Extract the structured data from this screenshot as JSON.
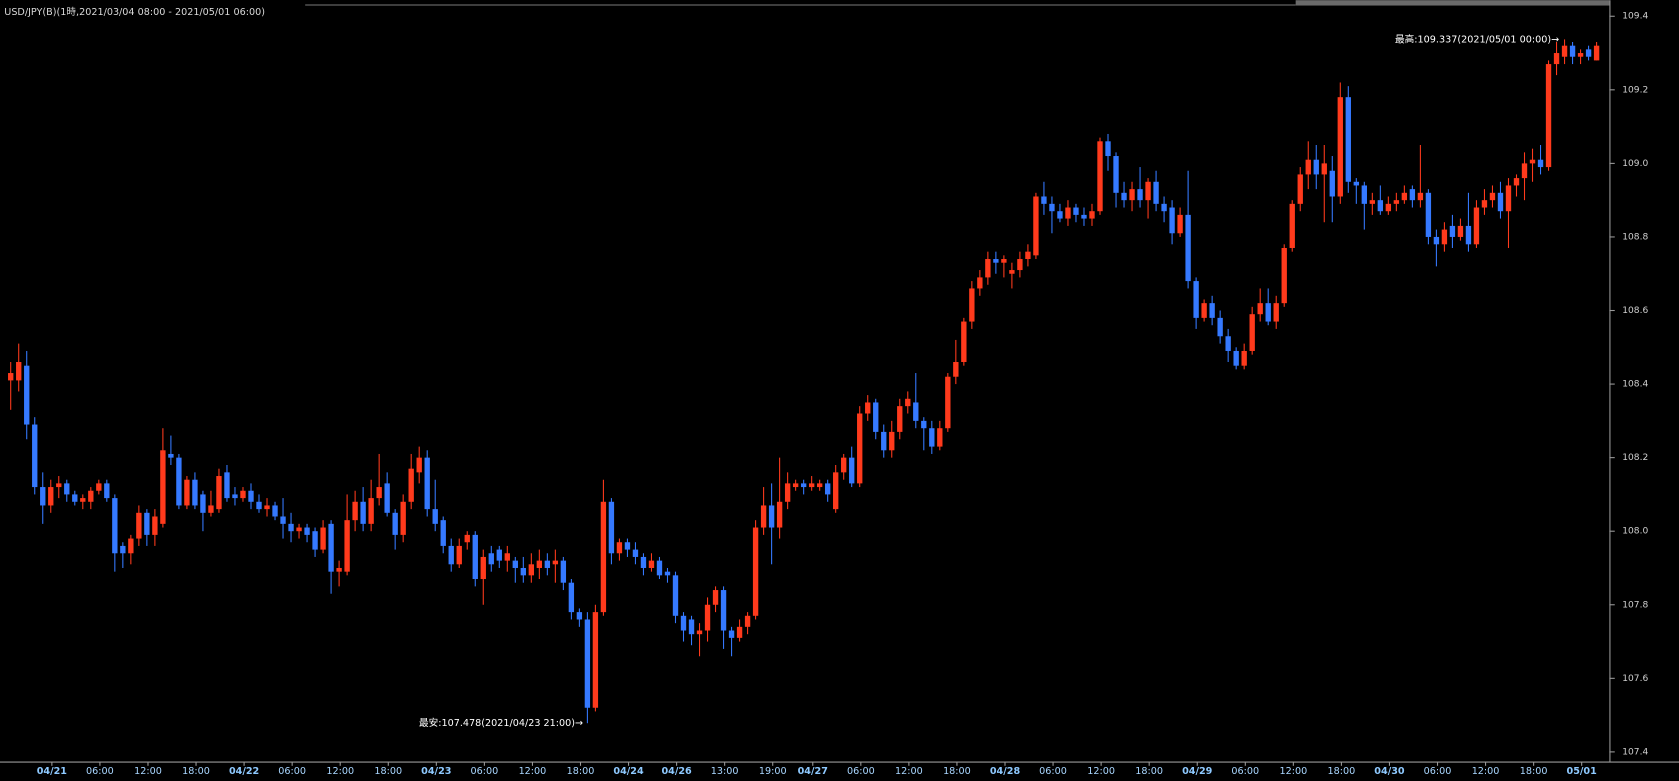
{
  "chart_data": {
    "type": "candlestick",
    "title": "USD/JPY(B)(1時,2021/03/04 08:00 - 2021/05/01 06:00)",
    "annotations": [
      "最高:109.337(2021/05/01 00:00)→",
      "最安:107.478(2021/04/23 21:00)→"
    ],
    "up_color": "#ff3a1c",
    "down_color": "#3579ff",
    "ylim": [
      107.4,
      109.4
    ],
    "yticks": [
      107.4,
      107.6,
      107.8,
      {
        "value": 108,
        "label": "108.0"
      },
      108.2,
      108.4,
      108.6,
      108.8,
      {
        "value": 109,
        "label": "109.0"
      },
      109.2,
      109.4
    ],
    "categories": [
      null,
      null,
      null,
      "04/21",
      null,
      null,
      null,
      null,
      null,
      "06:00",
      null,
      null,
      null,
      null,
      null,
      "12:00",
      null,
      null,
      null,
      null,
      null,
      "18:00",
      null,
      null,
      null,
      null,
      null,
      "04/22",
      null,
      null,
      null,
      null,
      null,
      "06:00",
      null,
      null,
      null,
      null,
      null,
      "12:00",
      null,
      null,
      null,
      null,
      null,
      "18:00",
      null,
      null,
      null,
      null,
      null,
      "04/23",
      null,
      null,
      null,
      null,
      null,
      "06:00",
      null,
      null,
      null,
      null,
      null,
      "12:00",
      null,
      null,
      null,
      null,
      null,
      "18:00",
      null,
      null,
      null,
      null,
      null,
      "04/24",
      null,
      null,
      null,
      null,
      null,
      "04/26",
      null,
      null,
      null,
      null,
      null,
      "13:00",
      null,
      null,
      null,
      null,
      null,
      "19:00",
      null,
      null,
      null,
      null,
      "04/27",
      null,
      null,
      null,
      null,
      null,
      "06:00",
      null,
      null,
      null,
      null,
      null,
      "12:00",
      null,
      null,
      null,
      null,
      null,
      "18:00",
      null,
      null,
      null,
      null,
      null,
      "04/28",
      null,
      null,
      null,
      null,
      null,
      "06:00",
      null,
      null,
      null,
      null,
      null,
      "12:00",
      null,
      null,
      null,
      null,
      null,
      "18:00",
      null,
      null,
      null,
      null,
      null,
      "04/29",
      null,
      null,
      null,
      null,
      null,
      "06:00",
      null,
      null,
      null,
      null,
      null,
      "12:00",
      null,
      null,
      null,
      null,
      null,
      "18:00",
      null,
      null,
      null,
      null,
      null,
      "04/30",
      null,
      null,
      null,
      null,
      null,
      "06:00",
      null,
      null,
      null,
      null,
      null,
      "12:00",
      null,
      null,
      null,
      null,
      null,
      "18:00",
      null,
      null,
      null,
      null,
      null,
      "05/01",
      null,
      null,
      null,
      null
    ],
    "open": [
      108.41,
      108.41,
      108.45,
      108.29,
      108.12,
      108.07,
      108.12,
      108.13,
      108.1,
      108.08,
      108.08,
      108.11,
      108.13,
      108.09,
      107.96,
      107.94,
      107.98,
      108.05,
      107.99,
      108.02,
      108.21,
      108.2,
      108.07,
      108.14,
      108.1,
      108.05,
      108.06,
      108.16,
      108.1,
      108.09,
      108.11,
      108.08,
      108.06,
      108.07,
      108.04,
      108.02,
      108.0,
      108.01,
      108.0,
      107.95,
      108.02,
      107.89,
      107.89,
      108.03,
      108.08,
      108.02,
      108.09,
      108.13,
      108.05,
      107.99,
      108.08,
      108.16,
      108.2,
      108.06,
      108.03,
      107.96,
      107.91,
      107.97,
      107.99,
      107.87,
      107.94,
      107.95,
      107.92,
      107.92,
      107.9,
      107.88,
      107.9,
      107.92,
      107.91,
      107.92,
      107.86,
      107.78,
      107.76,
      107.52,
      107.78,
      108.08,
      107.94,
      107.97,
      107.95,
      107.93,
      107.9,
      107.92,
      107.89,
      107.88,
      107.77,
      107.76,
      107.72,
      107.73,
      107.8,
      107.84,
      107.73,
      107.71,
      107.74,
      107.77,
      108.01,
      108.07,
      108.01,
      108.08,
      108.12,
      108.13,
      108.12,
      108.12,
      108.13,
      108.06,
      108.16,
      108.2,
      108.13,
      108.32,
      108.35,
      108.27,
      108.22,
      108.27,
      108.34,
      108.35,
      108.3,
      108.28,
      108.23,
      108.28,
      108.42,
      108.46,
      108.57,
      108.66,
      108.69,
      108.74,
      108.73,
      108.7,
      108.71,
      108.74,
      108.75,
      108.91,
      108.89,
      108.87,
      108.85,
      108.88,
      108.86,
      108.85,
      108.87,
      109.06,
      109.02,
      108.92,
      108.9,
      108.93,
      108.9,
      108.95,
      108.89,
      108.88,
      108.81,
      108.86,
      108.68,
      108.58,
      108.62,
      108.58,
      108.53,
      108.49,
      108.45,
      108.49,
      108.59,
      108.62,
      108.57,
      108.62,
      108.77,
      108.89,
      108.97,
      109.01,
      108.97,
      108.98,
      108.91,
      109.18,
      108.95,
      108.94,
      108.89,
      108.9,
      108.87,
      108.89,
      108.9,
      108.93,
      108.9,
      108.92,
      108.8,
      108.78,
      108.83,
      108.8,
      108.83,
      108.78,
      108.88,
      108.9,
      108.92,
      108.87,
      108.94,
      108.96,
      109.0,
      109.01,
      108.99,
      109.27,
      109.29,
      109.32,
      109.29,
      109.31,
      109.28
    ],
    "high": [
      108.46,
      108.51,
      108.49,
      108.31,
      108.16,
      108.14,
      108.15,
      108.14,
      108.11,
      108.1,
      108.12,
      108.14,
      108.14,
      108.1,
      107.97,
      107.99,
      108.07,
      108.06,
      108.06,
      108.28,
      108.26,
      108.21,
      108.15,
      108.16,
      108.11,
      108.11,
      108.17,
      108.18,
      108.12,
      108.12,
      108.13,
      108.1,
      108.09,
      108.08,
      108.09,
      108.05,
      108.02,
      108.02,
      108.01,
      108.03,
      108.03,
      107.92,
      108.1,
      108.11,
      108.12,
      108.14,
      108.21,
      108.16,
      108.06,
      108.1,
      108.21,
      108.23,
      108.22,
      108.14,
      108.04,
      107.98,
      107.98,
      108.0,
      108.0,
      107.95,
      107.96,
      107.96,
      107.96,
      107.93,
      107.93,
      107.94,
      107.95,
      107.94,
      107.95,
      107.93,
      107.87,
      107.79,
      107.78,
      107.8,
      108.14,
      108.09,
      107.98,
      107.98,
      107.97,
      107.94,
      107.94,
      107.93,
      107.9,
      107.89,
      107.78,
      107.77,
      107.75,
      107.82,
      107.85,
      107.85,
      107.74,
      107.76,
      107.78,
      108.03,
      108.12,
      108.13,
      108.2,
      108.16,
      108.14,
      108.14,
      108.15,
      108.14,
      108.14,
      108.18,
      108.21,
      108.23,
      108.34,
      108.37,
      108.36,
      108.29,
      108.3,
      108.36,
      108.38,
      108.43,
      108.31,
      108.3,
      108.3,
      108.43,
      108.52,
      108.58,
      108.68,
      108.71,
      108.76,
      108.76,
      108.75,
      108.73,
      108.76,
      108.78,
      108.92,
      108.95,
      108.91,
      108.89,
      108.9,
      108.89,
      108.88,
      108.89,
      109.07,
      109.08,
      109.03,
      108.95,
      108.95,
      108.99,
      108.96,
      108.98,
      108.91,
      108.9,
      108.88,
      108.98,
      108.69,
      108.63,
      108.64,
      108.6,
      108.55,
      108.5,
      108.51,
      108.61,
      108.66,
      108.66,
      108.64,
      108.78,
      108.9,
      108.99,
      109.06,
      109.05,
      109.05,
      109.02,
      109.22,
      109.21,
      108.96,
      108.95,
      108.92,
      108.94,
      108.91,
      108.92,
      108.94,
      108.94,
      109.05,
      108.93,
      108.82,
      108.84,
      108.86,
      108.85,
      108.92,
      108.9,
      108.93,
      108.94,
      108.95,
      108.96,
      108.97,
      109.03,
      109.04,
      109.05,
      109.28,
      109.33,
      109.337,
      109.33,
      109.31,
      109.32,
      109.33
    ],
    "low": [
      108.33,
      108.38,
      108.25,
      108.1,
      108.02,
      108.05,
      108.09,
      108.08,
      108.07,
      108.06,
      108.06,
      108.1,
      108.08,
      107.89,
      107.9,
      107.91,
      107.96,
      107.96,
      107.96,
      108.01,
      108.18,
      108.06,
      108.06,
      108.06,
      108.0,
      108.04,
      108.05,
      108.08,
      108.07,
      108.08,
      108.06,
      108.05,
      108.04,
      108.03,
      107.98,
      107.97,
      107.98,
      107.97,
      107.93,
      107.94,
      107.83,
      107.85,
      107.88,
      108.0,
      108.0,
      108.0,
      108.07,
      108.04,
      107.95,
      107.97,
      108.06,
      108.13,
      108.04,
      108.0,
      107.94,
      107.89,
      107.9,
      107.95,
      107.85,
      107.8,
      107.89,
      107.9,
      107.89,
      107.86,
      107.86,
      107.86,
      107.87,
      107.88,
      107.86,
      107.84,
      107.76,
      107.74,
      107.478,
      107.51,
      107.77,
      107.91,
      107.92,
      107.93,
      107.91,
      107.88,
      107.89,
      107.87,
      107.86,
      107.75,
      107.7,
      107.69,
      107.66,
      107.7,
      107.78,
      107.68,
      107.66,
      107.7,
      107.72,
      107.76,
      107.99,
      107.91,
      107.98,
      108.06,
      108.11,
      108.1,
      108.11,
      108.11,
      108.08,
      108.05,
      108.14,
      108.12,
      108.12,
      108.3,
      108.25,
      108.2,
      108.2,
      108.25,
      108.32,
      108.28,
      108.22,
      108.21,
      108.22,
      108.27,
      108.4,
      108.45,
      108.55,
      108.64,
      108.67,
      108.7,
      108.69,
      108.66,
      108.69,
      108.72,
      108.74,
      108.86,
      108.81,
      108.84,
      108.83,
      108.84,
      108.83,
      108.83,
      108.86,
      108.98,
      108.88,
      108.88,
      108.87,
      108.88,
      108.85,
      108.87,
      108.84,
      108.78,
      108.8,
      108.66,
      108.55,
      108.57,
      108.56,
      108.51,
      108.46,
      108.44,
      108.44,
      108.48,
      108.57,
      108.56,
      108.55,
      108.61,
      108.76,
      108.87,
      108.93,
      108.93,
      108.84,
      108.84,
      108.89,
      108.92,
      108.89,
      108.82,
      108.86,
      108.86,
      108.86,
      108.87,
      108.89,
      108.88,
      108.88,
      108.78,
      108.72,
      108.76,
      108.77,
      108.79,
      108.76,
      108.77,
      108.86,
      108.88,
      108.85,
      108.77,
      108.91,
      108.9,
      108.95,
      108.97,
      108.98,
      109.24,
      109.27,
      109.27,
      109.27,
      109.28,
      109.28
    ],
    "close": [
      108.43,
      108.46,
      108.29,
      108.12,
      108.07,
      108.12,
      108.13,
      108.1,
      108.08,
      108.09,
      108.11,
      108.13,
      108.09,
      107.94,
      107.94,
      107.98,
      108.05,
      107.99,
      108.04,
      108.22,
      108.2,
      108.07,
      108.14,
      108.07,
      108.05,
      108.07,
      108.15,
      108.09,
      108.09,
      108.11,
      108.08,
      108.06,
      108.07,
      108.04,
      108.02,
      108.0,
      108.01,
      107.99,
      107.95,
      108.01,
      107.89,
      107.9,
      108.03,
      108.08,
      108.02,
      108.09,
      108.12,
      108.05,
      107.99,
      108.08,
      108.17,
      108.2,
      108.06,
      108.02,
      107.96,
      107.91,
      107.96,
      107.99,
      107.87,
      107.93,
      107.91,
      107.92,
      107.94,
      107.9,
      107.88,
      107.91,
      107.92,
      107.9,
      107.92,
      107.86,
      107.78,
      107.76,
      107.52,
      107.78,
      108.08,
      107.94,
      107.97,
      107.95,
      107.93,
      107.9,
      107.92,
      107.88,
      107.88,
      107.77,
      107.73,
      107.72,
      107.73,
      107.8,
      107.84,
      107.73,
      107.71,
      107.74,
      107.77,
      108.01,
      108.07,
      108.01,
      108.08,
      108.13,
      108.13,
      108.12,
      108.13,
      108.13,
      108.1,
      108.16,
      108.2,
      108.13,
      108.32,
      108.35,
      108.27,
      108.22,
      108.27,
      108.34,
      108.36,
      108.3,
      108.28,
      108.23,
      108.28,
      108.42,
      108.46,
      108.57,
      108.66,
      108.69,
      108.74,
      108.73,
      108.74,
      108.71,
      108.74,
      108.76,
      108.91,
      108.89,
      108.87,
      108.85,
      108.88,
      108.86,
      108.85,
      108.87,
      109.06,
      109.02,
      108.92,
      108.9,
      108.93,
      108.9,
      108.95,
      108.89,
      108.87,
      108.81,
      108.86,
      108.68,
      108.58,
      108.62,
      108.58,
      108.53,
      108.49,
      108.45,
      108.49,
      108.59,
      108.62,
      108.57,
      108.62,
      108.77,
      108.89,
      108.97,
      109.01,
      108.97,
      109.0,
      108.91,
      109.18,
      108.95,
      108.94,
      108.89,
      108.9,
      108.87,
      108.89,
      108.9,
      108.92,
      108.9,
      108.92,
      108.8,
      108.78,
      108.82,
      108.8,
      108.83,
      108.78,
      108.88,
      108.9,
      108.92,
      108.87,
      108.94,
      108.96,
      109.0,
      109.01,
      108.99,
      109.27,
      109.3,
      109.32,
      109.29,
      109.3,
      109.29,
      109.32
    ]
  }
}
